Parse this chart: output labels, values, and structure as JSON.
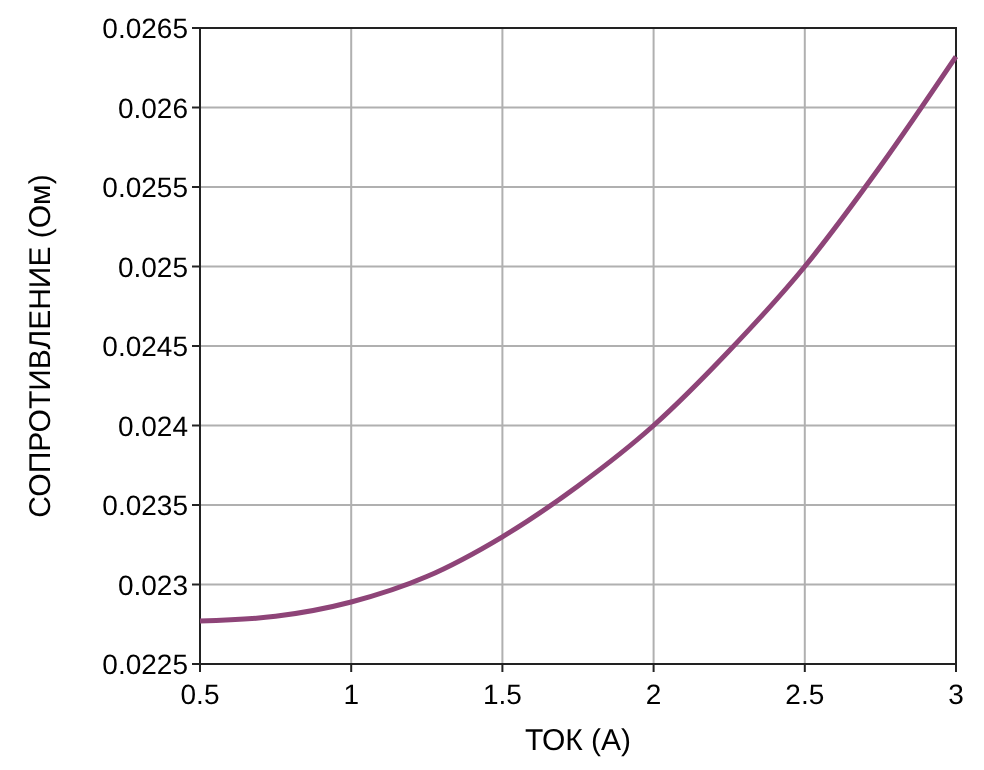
{
  "chart_data": {
    "type": "line",
    "xlabel": "ТОК (А)",
    "ylabel": "СОПРОТИВЛЕНИЕ (Ом)",
    "x": [
      0.5,
      0.75,
      1,
      1.25,
      1.5,
      1.75,
      2,
      2.25,
      2.5,
      2.75,
      3
    ],
    "series": [
      {
        "color": "#8e4478",
        "values": [
          0.02277,
          0.0228,
          0.02289,
          0.02305,
          0.0233,
          0.02362,
          0.024,
          0.02447,
          0.025,
          0.02563,
          0.02632
        ]
      }
    ],
    "xlim": [
      0.5,
      3
    ],
    "xticks": [
      0.5,
      1,
      1.5,
      2,
      2.5,
      3
    ],
    "ylim": [
      0.0225,
      0.0265
    ],
    "yticks": [
      0.0225,
      0.023,
      0.0235,
      0.024,
      0.0245,
      0.025,
      0.0255,
      0.026,
      0.0265
    ],
    "grid": true,
    "marker": "none",
    "line_style": "solid"
  }
}
